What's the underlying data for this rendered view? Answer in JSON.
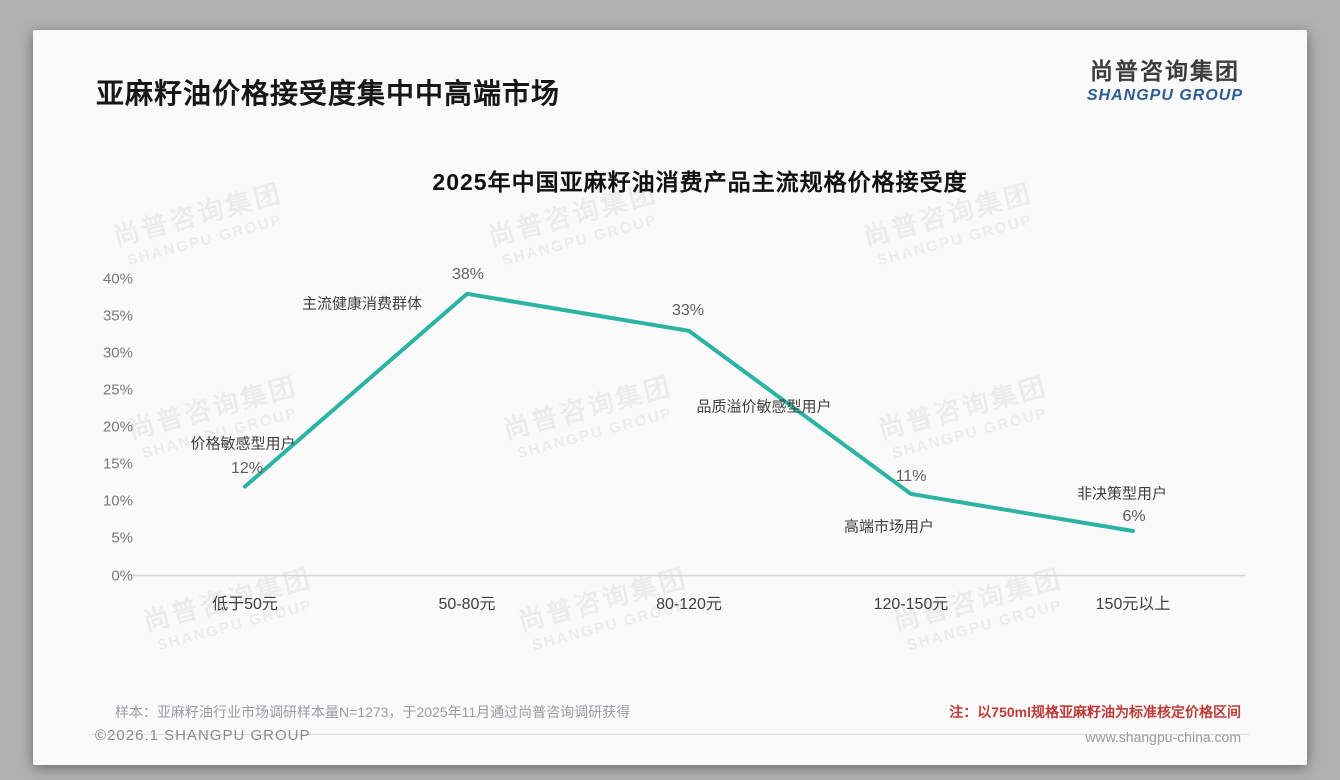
{
  "page": {
    "title": "亚麻籽油价格接受度集中中高端市场",
    "logo": {
      "cn": "尚普咨询集团",
      "en": "SHANGPU GROUP"
    }
  },
  "watermark": {
    "cn": "尚普咨询集团",
    "en": "SHANGPU GROUP"
  },
  "chart_data": {
    "type": "line",
    "title": "2025年中国亚麻籽油消费产品主流规格价格接受度",
    "categories": [
      "低于50元",
      "50-80元",
      "80-120元",
      "120-150元",
      "150元以上"
    ],
    "values": [
      12,
      38,
      33,
      11,
      6
    ],
    "value_labels": [
      "12%",
      "38%",
      "33%",
      "11%",
      "6%"
    ],
    "annotations": [
      "价格敏感型用户",
      "主流健康消费群体",
      "品质溢价敏感型用户",
      "高端市场用户",
      "非决策型用户"
    ],
    "y_ticks": [
      "0%",
      "5%",
      "10%",
      "15%",
      "20%",
      "25%",
      "30%",
      "35%",
      "40%"
    ],
    "ylim": [
      0,
      40
    ],
    "xlabel": "",
    "ylabel": "",
    "grid": false,
    "legend": false,
    "line_color": "#2bb3a4",
    "axis_color": "#d6d6d6"
  },
  "notes": {
    "sample": "样本：亚麻籽油行业市场调研样本量N=1273，于2025年11月通过尚普咨询调研获得",
    "price_note": "注：以750ml规格亚麻籽油为标准核定价格区间",
    "price_note_color": "#be3c37"
  },
  "footer": {
    "copyright": "©2026.1 SHANGPU GROUP",
    "website": "www.shangpu-china.com"
  }
}
